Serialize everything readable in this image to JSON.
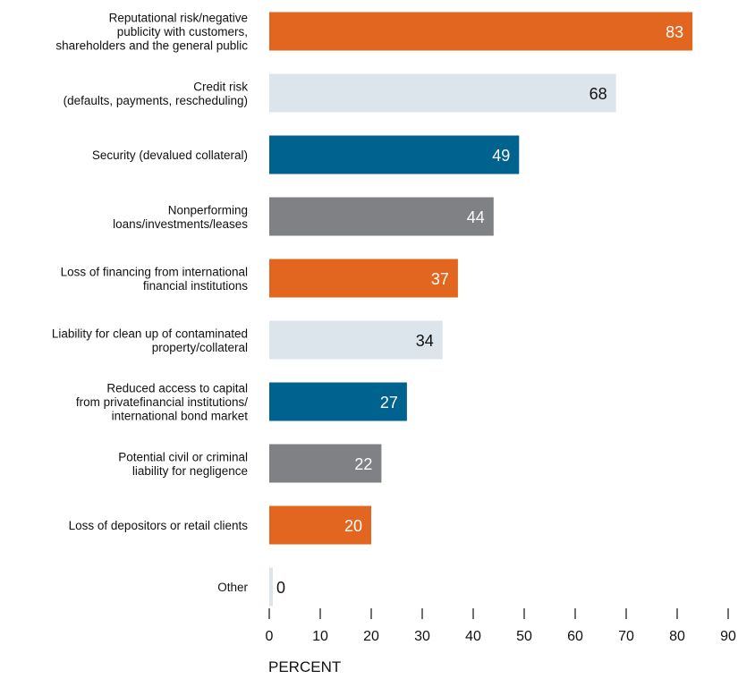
{
  "chart_data": {
    "type": "bar",
    "orientation": "horizontal",
    "categories": [
      [
        "Reputational risk/negative",
        "publicity with customers,",
        "shareholders and the general public"
      ],
      [
        "Credit risk",
        "(defaults, payments, rescheduling)"
      ],
      [
        "Security (devalued collateral)"
      ],
      [
        "Nonperforming",
        "loans/investments/leases"
      ],
      [
        "Loss of financing from international",
        "financial institutions"
      ],
      [
        "Liability for clean up of contaminated",
        "property/collateral"
      ],
      [
        "Reduced access to capital",
        "from privatefinancial institutions/",
        "international bond market"
      ],
      [
        "Potential civil or criminal",
        "liability for negligence"
      ],
      [
        "Loss of depositors or retail clients"
      ],
      [
        "Other"
      ]
    ],
    "values": [
      83,
      68,
      49,
      44,
      37,
      34,
      27,
      22,
      20,
      0
    ],
    "value_labels": [
      "83",
      "68",
      "49",
      "44",
      "37",
      "34",
      "27",
      "22",
      "20",
      "0"
    ],
    "bar_colors": [
      "#e2661f",
      "#dce4ec",
      "#00628f",
      "#808184",
      "#e2661f",
      "#dce4ec",
      "#00628f",
      "#808184",
      "#e2661f",
      "#dce4ec"
    ],
    "value_label_colors": [
      "#ffffff",
      "#111111",
      "#ffffff",
      "#ffffff",
      "#ffffff",
      "#111111",
      "#ffffff",
      "#ffffff",
      "#ffffff",
      "#111111"
    ],
    "xlim": [
      0,
      90
    ],
    "xticks": [
      0,
      10,
      20,
      30,
      40,
      50,
      60,
      70,
      80,
      90
    ],
    "xtick_labels": [
      "0",
      "10",
      "20",
      "30",
      "40",
      "50",
      "60",
      "70",
      "80",
      "90"
    ],
    "xlabel": "PERCENT",
    "grid": false,
    "legend": "none"
  }
}
